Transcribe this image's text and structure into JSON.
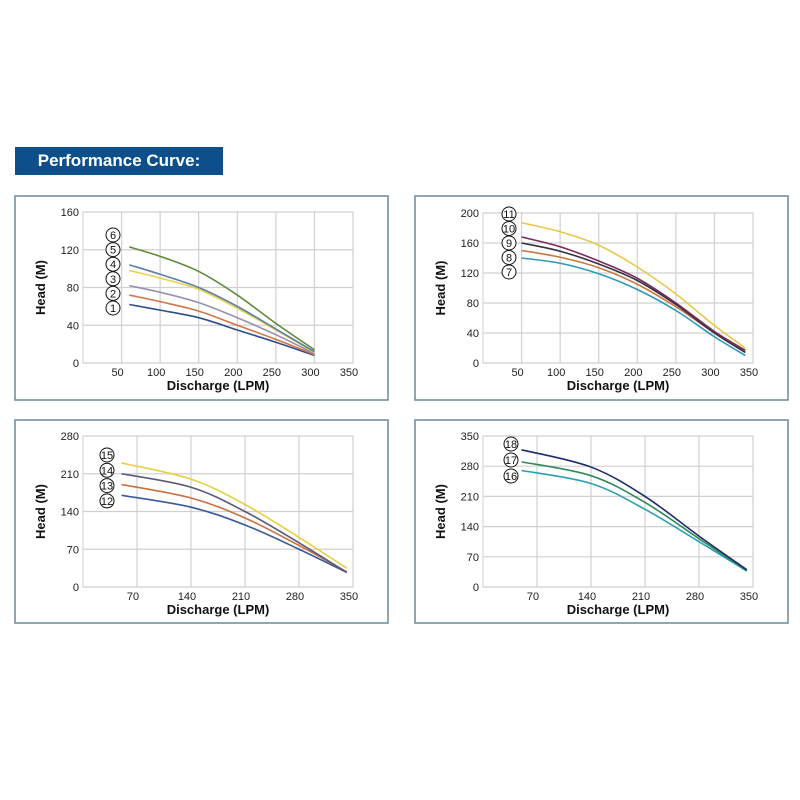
{
  "header": {
    "title": "Performance Curve:",
    "color": "#0d4f8b"
  },
  "chart_data": [
    {
      "type": "line",
      "xlabel": "Discharge (LPM)",
      "ylabel": "Head (M)",
      "xlim": [
        0,
        350
      ],
      "ylim": [
        0,
        160
      ],
      "xticks": [
        50,
        100,
        150,
        200,
        250,
        300,
        350
      ],
      "yticks": [
        0,
        40,
        80,
        120,
        160
      ],
      "grid": true,
      "series": [
        {
          "name": "1",
          "color": "#2b4f8c",
          "x": [
            60,
            100,
            150,
            200,
            250,
            300
          ],
          "y": [
            62,
            56,
            48,
            35,
            22,
            8
          ]
        },
        {
          "name": "2",
          "color": "#d2744a",
          "x": [
            60,
            100,
            150,
            200,
            250,
            300
          ],
          "y": [
            72,
            65,
            55,
            40,
            25,
            9
          ]
        },
        {
          "name": "3",
          "color": "#9a8fb0",
          "x": [
            60,
            100,
            150,
            200,
            250,
            300
          ],
          "y": [
            82,
            75,
            64,
            48,
            30,
            10
          ]
        },
        {
          "name": "4",
          "color": "#e8d24a",
          "x": [
            60,
            100,
            150,
            200,
            250,
            300
          ],
          "y": [
            98,
            90,
            78,
            58,
            35,
            11
          ]
        },
        {
          "name": "5",
          "color": "#5a7fa8",
          "x": [
            60,
            100,
            150,
            200,
            250,
            300
          ],
          "y": [
            104,
            94,
            80,
            60,
            36,
            12
          ]
        },
        {
          "name": "6",
          "color": "#5f8a3a",
          "x": [
            60,
            100,
            150,
            200,
            250,
            300
          ],
          "y": [
            123,
            113,
            97,
            72,
            42,
            14
          ]
        }
      ]
    },
    {
      "type": "line",
      "xlabel": "Discharge (LPM)",
      "ylabel": "Head (M)",
      "xlim": [
        0,
        350
      ],
      "ylim": [
        0,
        200
      ],
      "xticks": [
        50,
        100,
        150,
        200,
        250,
        300,
        350
      ],
      "yticks": [
        0,
        40,
        80,
        120,
        160,
        200
      ],
      "grid": true,
      "series": [
        {
          "name": "7",
          "color": "#2a9ab8",
          "x": [
            50,
            100,
            150,
            200,
            250,
            300,
            340
          ],
          "y": [
            140,
            133,
            119,
            98,
            70,
            35,
            10
          ]
        },
        {
          "name": "8",
          "color": "#c8783e",
          "x": [
            50,
            100,
            150,
            200,
            250,
            300,
            340
          ],
          "y": [
            150,
            141,
            127,
            105,
            75,
            40,
            15
          ]
        },
        {
          "name": "9",
          "color": "#333344",
          "x": [
            50,
            100,
            150,
            200,
            250,
            300,
            340
          ],
          "y": [
            160,
            149,
            132,
            110,
            78,
            40,
            14
          ]
        },
        {
          "name": "10",
          "color": "#7a2a5a",
          "x": [
            50,
            100,
            150,
            200,
            250,
            300,
            340
          ],
          "y": [
            168,
            155,
            136,
            113,
            80,
            42,
            17
          ]
        },
        {
          "name": "11",
          "color": "#e8c84a",
          "x": [
            50,
            100,
            150,
            200,
            250,
            300,
            340
          ],
          "y": [
            187,
            175,
            157,
            128,
            92,
            50,
            20
          ]
        }
      ]
    },
    {
      "type": "line",
      "xlabel": "Discharge (LPM)",
      "ylabel": "Head (M)",
      "xlim": [
        0,
        350
      ],
      "ylim": [
        0,
        280
      ],
      "xticks": [
        70,
        140,
        210,
        280,
        350
      ],
      "yticks": [
        0,
        70,
        140,
        210,
        280
      ],
      "grid": true,
      "series": [
        {
          "name": "12",
          "color": "#3a5a9a",
          "x": [
            50,
            140,
            210,
            280,
            342
          ],
          "y": [
            170,
            148,
            115,
            70,
            27
          ]
        },
        {
          "name": "13",
          "color": "#c8703e",
          "x": [
            50,
            140,
            210,
            280,
            342
          ],
          "y": [
            190,
            165,
            128,
            77,
            28
          ]
        },
        {
          "name": "14",
          "color": "#5a5a7a",
          "x": [
            50,
            140,
            210,
            280,
            342
          ],
          "y": [
            210,
            185,
            140,
            82,
            27
          ]
        },
        {
          "name": "15",
          "color": "#e8d040",
          "x": [
            50,
            140,
            210,
            280,
            342
          ],
          "y": [
            230,
            200,
            153,
            92,
            35
          ]
        }
      ]
    },
    {
      "type": "line",
      "xlabel": "Discharge (LPM)",
      "ylabel": "Head (M)",
      "xlim": [
        0,
        350
      ],
      "ylim": [
        0,
        350
      ],
      "xticks": [
        70,
        140,
        210,
        280,
        350
      ],
      "yticks": [
        0,
        70,
        140,
        210,
        280,
        350
      ],
      "grid": true,
      "series": [
        {
          "name": "16",
          "color": "#2aa0b0",
          "x": [
            50,
            140,
            210,
            280,
            342
          ],
          "y": [
            270,
            240,
            180,
            105,
            37
          ]
        },
        {
          "name": "17",
          "color": "#2f8a5a",
          "x": [
            50,
            140,
            210,
            280,
            342
          ],
          "y": [
            290,
            258,
            196,
            112,
            38
          ]
        },
        {
          "name": "18",
          "color": "#1e2a6a",
          "x": [
            50,
            140,
            210,
            280,
            342
          ],
          "y": [
            318,
            278,
            210,
            118,
            40
          ]
        }
      ]
    }
  ]
}
